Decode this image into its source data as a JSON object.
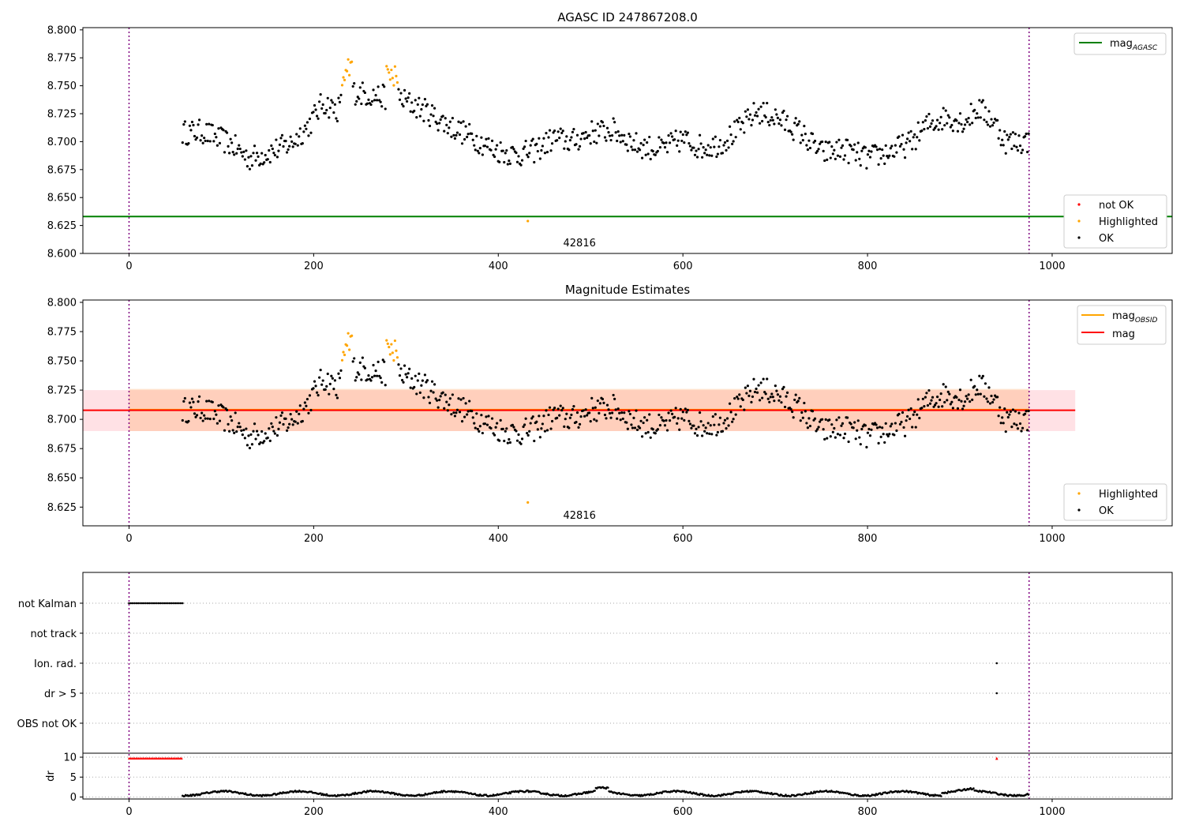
{
  "chart_data": [
    {
      "type": "scatter",
      "title": "AGASC ID 247867208.0",
      "xlabel": "",
      "ylabel": "",
      "xlim": [
        -50,
        1130
      ],
      "ylim": [
        8.6,
        8.802
      ],
      "xticks": [
        "0",
        "200",
        "400",
        "600",
        "800",
        "1000"
      ],
      "yticks": [
        "8.600",
        "8.625",
        "8.650",
        "8.675",
        "8.700",
        "8.725",
        "8.750",
        "8.775",
        "8.800"
      ],
      "obsid_boundaries": [
        0,
        975
      ],
      "obsid_label": {
        "text": "42816",
        "x": 488
      },
      "hlines": [
        {
          "name": "mag",
          "sub": "AGASC",
          "y": 8.633,
          "color": "#008000",
          "x": [
            -50,
            1130
          ]
        }
      ],
      "legend_top": [
        {
          "name": "mag",
          "sub": "AGASC",
          "color": "#008000"
        }
      ],
      "legend_bottom": [
        {
          "name": "not OK",
          "color": "#ff0000"
        },
        {
          "name": "Highlighted",
          "color": "#ffa500"
        },
        {
          "name": "OK",
          "color": "#000000"
        }
      ],
      "series_colors": {
        "ok": "#000000",
        "highlighted": "#ffa500"
      }
    },
    {
      "type": "scatter",
      "title": "Magnitude Estimates",
      "xlabel": "",
      "ylabel": "",
      "xlim": [
        -50,
        1130
      ],
      "ylim": [
        8.609,
        8.802
      ],
      "xticks": [
        "0",
        "200",
        "400",
        "600",
        "800",
        "1000"
      ],
      "yticks": [
        "8.625",
        "8.650",
        "8.675",
        "8.700",
        "8.725",
        "8.750",
        "8.775",
        "8.800"
      ],
      "obsid_boundaries": [
        0,
        975
      ],
      "obsid_label": {
        "text": "42816",
        "x": 488
      },
      "bands": [
        {
          "x": [
            -50,
            1025
          ],
          "y": [
            8.69,
            8.725
          ],
          "color": "#ff9aa8",
          "opacity": 0.3
        },
        {
          "x": [
            0,
            975
          ],
          "y": [
            8.69,
            8.726
          ],
          "color": "#ffb070",
          "opacity": 0.35
        }
      ],
      "hlines": [
        {
          "name": "mag",
          "sub": "OBSID",
          "y": 8.7083,
          "color": "#ffa500",
          "x": [
            0,
            975
          ]
        },
        {
          "name": "mag",
          "sub": "",
          "y": 8.7078,
          "color": "#ff0000",
          "x": [
            -50,
            1025
          ]
        }
      ],
      "legend_top": [
        {
          "name": "mag",
          "sub": "OBSID",
          "color": "#ffa500"
        },
        {
          "name": "mag",
          "sub": "",
          "color": "#ff0000"
        }
      ],
      "legend_bottom": [
        {
          "name": "Highlighted",
          "color": "#ffa500"
        },
        {
          "name": "OK",
          "color": "#000000"
        }
      ],
      "series_colors": {
        "ok": "#000000",
        "highlighted": "#ffa500"
      }
    },
    {
      "type": "scatter",
      "title": "",
      "categories": [
        "not Kalman",
        "not track",
        "Ion. rad.",
        "dr > 5",
        "OBS not OK"
      ],
      "xlim": [
        -50,
        1130
      ],
      "obsid_boundaries": [
        0,
        975
      ],
      "flags": [
        {
          "category": "not Kalman",
          "x_range": [
            0,
            58
          ],
          "step": 2
        },
        {
          "category": "Ion. rad.",
          "x": [
            940
          ]
        },
        {
          "category": "dr > 5",
          "x": [
            940
          ]
        }
      ]
    },
    {
      "type": "line",
      "title": "",
      "xlabel": "",
      "ylabel": "dr",
      "xlim": [
        -50,
        1130
      ],
      "ylim": [
        -0.5,
        11
      ],
      "xticks": [
        "0",
        "200",
        "400",
        "600",
        "800",
        "1000"
      ],
      "yticks": [
        "0",
        "5",
        "10"
      ],
      "obsid_boundaries": [
        0,
        975
      ],
      "clipped_points": {
        "x_range": [
          0,
          58
        ],
        "extra_x": [
          940
        ],
        "y": 9.7,
        "color": "#ff0000"
      },
      "dr_line": {
        "x_range": [
          58,
          975
        ],
        "mean": 0.9,
        "color": "#000000"
      }
    }
  ]
}
